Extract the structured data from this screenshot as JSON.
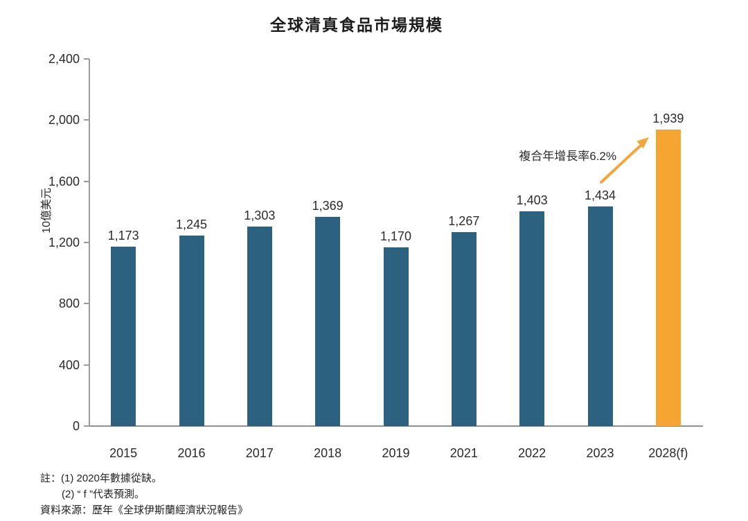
{
  "header": {
    "title": "全球清真食品市場規模"
  },
  "chart_data": {
    "type": "bar",
    "title": "全球清真食品市場規模",
    "xlabel": "",
    "ylabel": "10億美元",
    "categories": [
      "2015",
      "2016",
      "2017",
      "2018",
      "2019",
      "2021",
      "2022",
      "2023",
      "2028(f)"
    ],
    "values": [
      1173,
      1245,
      1303,
      1369,
      1170,
      1267,
      1403,
      1434,
      1939
    ],
    "value_labels": [
      "1,173",
      "1,245",
      "1,303",
      "1,369",
      "1,170",
      "1,267",
      "1,403",
      "1,434",
      "1,939"
    ],
    "bar_colors": [
      "#2C6280",
      "#2C6280",
      "#2C6280",
      "#2C6280",
      "#2C6280",
      "#2C6280",
      "#2C6280",
      "#2C6280",
      "#F6A532"
    ],
    "ylim": [
      0,
      2400
    ],
    "yticks": [
      {
        "value": 0,
        "label": "0"
      },
      {
        "value": 400,
        "label": "400"
      },
      {
        "value": 800,
        "label": "800"
      },
      {
        "value": 1200,
        "label": "1,200"
      },
      {
        "value": 1600,
        "label": "1,600"
      },
      {
        "value": 2000,
        "label": "2,000"
      },
      {
        "value": 2400,
        "label": "2,400"
      }
    ],
    "grid": false,
    "legend": null,
    "annotation": {
      "text": "複合年增長率6.2%",
      "arrow_color": "#F2A63B"
    }
  },
  "footnotes": {
    "note_line1": "註：(1) 2020年數據從缺。",
    "note_line2": "(2) “ f ”代表預測。",
    "source": "資料來源：歷年《全球伊斯蘭經濟狀況報告》"
  },
  "colors": {
    "bar_teal": "#2C6280",
    "bar_orange": "#F6A532",
    "axis": "#9A9A9A",
    "text": "#212121"
  }
}
